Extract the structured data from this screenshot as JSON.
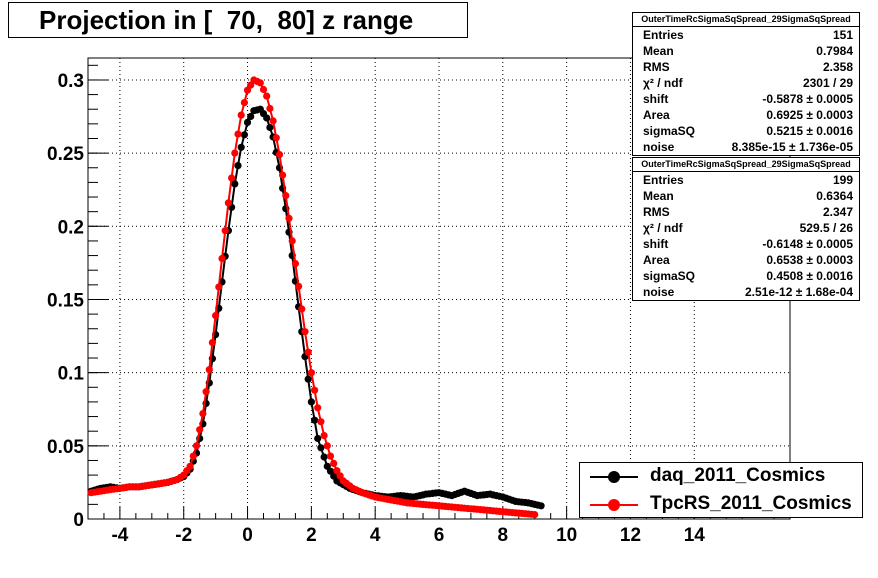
{
  "title": "Projection in [  70,  80] z range",
  "stats_boxes": [
    {
      "header": "OuterTimeRcSigmaSqSpread_29SigmaSqSpread",
      "rows": [
        {
          "label": "Entries",
          "value": "151"
        },
        {
          "label": "Mean",
          "value": "0.7984"
        },
        {
          "label": "RMS",
          "value": "2.358"
        },
        {
          "label": "χ² / ndf",
          "value": "2301 / 29"
        },
        {
          "label": "shift",
          "value": "-0.5878 ± 0.0005"
        },
        {
          "label": "Area",
          "value": "0.6925 ± 0.0003"
        },
        {
          "label": "sigmaSQ",
          "value": "0.5215 ± 0.0016"
        },
        {
          "label": "noise",
          "value": "8.385e-15 ± 1.736e-05"
        }
      ]
    },
    {
      "header": "OuterTimeRcSigmaSqSpread_29SigmaSqSpread",
      "rows": [
        {
          "label": "Entries",
          "value": "199"
        },
        {
          "label": "Mean",
          "value": "0.6364"
        },
        {
          "label": "RMS",
          "value": "2.347"
        },
        {
          "label": "χ² / ndf",
          "value": "529.5 / 26"
        },
        {
          "label": "shift",
          "value": "-0.6148 ± 0.0005"
        },
        {
          "label": "Area",
          "value": "0.6538 ± 0.0003"
        },
        {
          "label": "sigmaSQ",
          "value": "0.4508 ± 0.0016"
        },
        {
          "label": "noise",
          "value": "2.51e-12 ± 1.68e-04"
        }
      ]
    }
  ],
  "chart_data": {
    "type": "scatter",
    "xlim": [
      -5,
      17
    ],
    "ylim": [
      0,
      0.315
    ],
    "x_ticks": [
      -4,
      -2,
      0,
      2,
      4,
      6,
      8,
      10,
      12,
      14
    ],
    "y_ticks": [
      0,
      0.05,
      0.1,
      0.15,
      0.2,
      0.25,
      0.3
    ],
    "y_tick_labels": [
      "0",
      "0.05",
      "0.1",
      "0.15",
      "0.2",
      "0.25",
      "0.3"
    ],
    "grid": true,
    "legend_position": "bottom-right",
    "series": [
      {
        "name": "daq_2011_Cosmics",
        "color": "#000000",
        "peak_x": 0.3,
        "points": [
          [
            -4.9,
            0.019
          ],
          [
            -4.6,
            0.021
          ],
          [
            -4.3,
            0.022
          ],
          [
            -4.0,
            0.021
          ],
          [
            -3.7,
            0.022
          ],
          [
            -3.4,
            0.022
          ],
          [
            -3.1,
            0.023
          ],
          [
            -2.8,
            0.024
          ],
          [
            -2.5,
            0.025
          ],
          [
            -2.2,
            0.027
          ],
          [
            -2.0,
            0.029
          ],
          [
            -1.8,
            0.034
          ],
          [
            -1.6,
            0.045
          ],
          [
            -1.4,
            0.065
          ],
          [
            -1.2,
            0.093
          ],
          [
            -1.0,
            0.126
          ],
          [
            -0.8,
            0.162
          ],
          [
            -0.6,
            0.197
          ],
          [
            -0.4,
            0.229
          ],
          [
            -0.2,
            0.254
          ],
          [
            0.0,
            0.271
          ],
          [
            0.2,
            0.279
          ],
          [
            0.4,
            0.28
          ],
          [
            0.6,
            0.274
          ],
          [
            0.8,
            0.261
          ],
          [
            1.0,
            0.24
          ],
          [
            1.2,
            0.212
          ],
          [
            1.4,
            0.18
          ],
          [
            1.6,
            0.145
          ],
          [
            1.8,
            0.111
          ],
          [
            2.0,
            0.08
          ],
          [
            2.2,
            0.055
          ],
          [
            2.5,
            0.036
          ],
          [
            2.8,
            0.026
          ],
          [
            3.2,
            0.021
          ],
          [
            3.6,
            0.018
          ],
          [
            4.0,
            0.016
          ],
          [
            4.4,
            0.015
          ],
          [
            4.8,
            0.016
          ],
          [
            5.2,
            0.015
          ],
          [
            5.6,
            0.017
          ],
          [
            6.0,
            0.018
          ],
          [
            6.4,
            0.016
          ],
          [
            6.8,
            0.019
          ],
          [
            7.2,
            0.016
          ],
          [
            7.6,
            0.017
          ],
          [
            8.0,
            0.015
          ],
          [
            8.4,
            0.012
          ],
          [
            8.8,
            0.011
          ],
          [
            9.2,
            0.009
          ]
        ]
      },
      {
        "name": "TpcRS_2011_Cosmics",
        "color": "#ff0000",
        "peak_x": 0.3,
        "points": [
          [
            -4.9,
            0.018
          ],
          [
            -4.6,
            0.019
          ],
          [
            -4.3,
            0.02
          ],
          [
            -4.0,
            0.021
          ],
          [
            -3.7,
            0.022
          ],
          [
            -3.4,
            0.022
          ],
          [
            -3.1,
            0.023
          ],
          [
            -2.8,
            0.024
          ],
          [
            -2.5,
            0.025
          ],
          [
            -2.2,
            0.027
          ],
          [
            -2.0,
            0.03
          ],
          [
            -1.8,
            0.036
          ],
          [
            -1.6,
            0.05
          ],
          [
            -1.4,
            0.072
          ],
          [
            -1.2,
            0.102
          ],
          [
            -1.0,
            0.139
          ],
          [
            -0.8,
            0.178
          ],
          [
            -0.6,
            0.216
          ],
          [
            -0.4,
            0.25
          ],
          [
            -0.2,
            0.276
          ],
          [
            0.0,
            0.293
          ],
          [
            0.2,
            0.3
          ],
          [
            0.4,
            0.298
          ],
          [
            0.6,
            0.289
          ],
          [
            0.8,
            0.272
          ],
          [
            1.0,
            0.249
          ],
          [
            1.2,
            0.221
          ],
          [
            1.4,
            0.19
          ],
          [
            1.6,
            0.159
          ],
          [
            1.8,
            0.128
          ],
          [
            2.0,
            0.1
          ],
          [
            2.2,
            0.076
          ],
          [
            2.4,
            0.057
          ],
          [
            2.6,
            0.043
          ],
          [
            2.8,
            0.033
          ],
          [
            3.0,
            0.026
          ],
          [
            3.3,
            0.021
          ],
          [
            3.6,
            0.018
          ],
          [
            4.0,
            0.015
          ],
          [
            4.5,
            0.013
          ],
          [
            5.0,
            0.011
          ],
          [
            5.5,
            0.01
          ],
          [
            6.0,
            0.009
          ],
          [
            6.5,
            0.008
          ],
          [
            7.0,
            0.007
          ],
          [
            7.5,
            0.006
          ],
          [
            8.0,
            0.005
          ],
          [
            8.5,
            0.004
          ],
          [
            9.0,
            0.003
          ]
        ]
      }
    ]
  }
}
